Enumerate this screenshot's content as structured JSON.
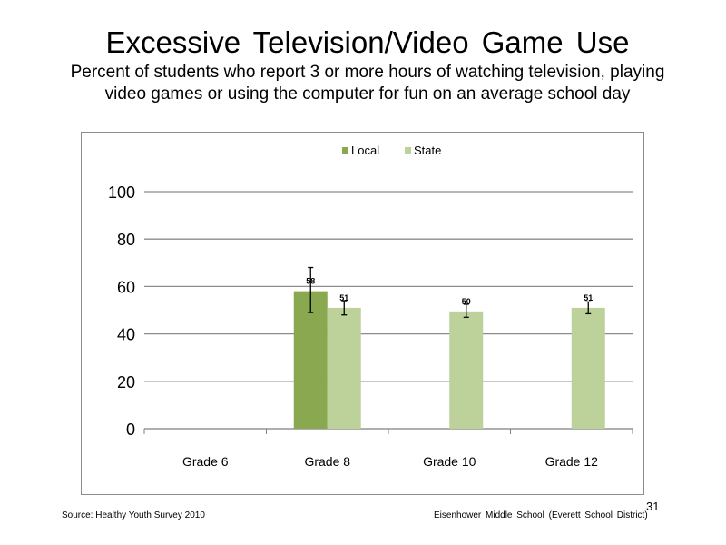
{
  "slide": {
    "title": "Excessive  Television/Video  Game Use",
    "subtitle_line1": "Percent of students who report 3 or more hours of watching television, playing",
    "subtitle_line2": "video games or using the computer for fun on an average school day",
    "footer_source": "Source: Healthy Youth Survey 2010",
    "footer_school": "Eisenhower Middle  School (Everett School District)",
    "page_number": "31"
  },
  "chart_data": {
    "type": "bar",
    "categories": [
      "Grade 6",
      "Grade 8",
      "Grade 10",
      "Grade 12"
    ],
    "series": [
      {
        "name": "Local",
        "color": "#8aa84f",
        "values": [
          null,
          58,
          null,
          null
        ],
        "labels": [
          null,
          "58",
          null,
          null
        ],
        "error_low": [
          null,
          49,
          null,
          null
        ],
        "error_high": [
          null,
          68,
          null,
          null
        ]
      },
      {
        "name": "State",
        "color": "#bdd19b",
        "values": [
          null,
          51,
          49.5,
          51
        ],
        "labels": [
          null,
          "51",
          "50",
          "51"
        ],
        "error_low": [
          null,
          48,
          47,
          48.5
        ],
        "error_high": [
          null,
          54,
          52.5,
          53.5
        ]
      }
    ],
    "ylim": [
      0,
      100
    ],
    "yticks": [
      "0",
      "20",
      "40",
      "60",
      "80",
      "100"
    ],
    "grid": true,
    "legend_position": "top"
  }
}
